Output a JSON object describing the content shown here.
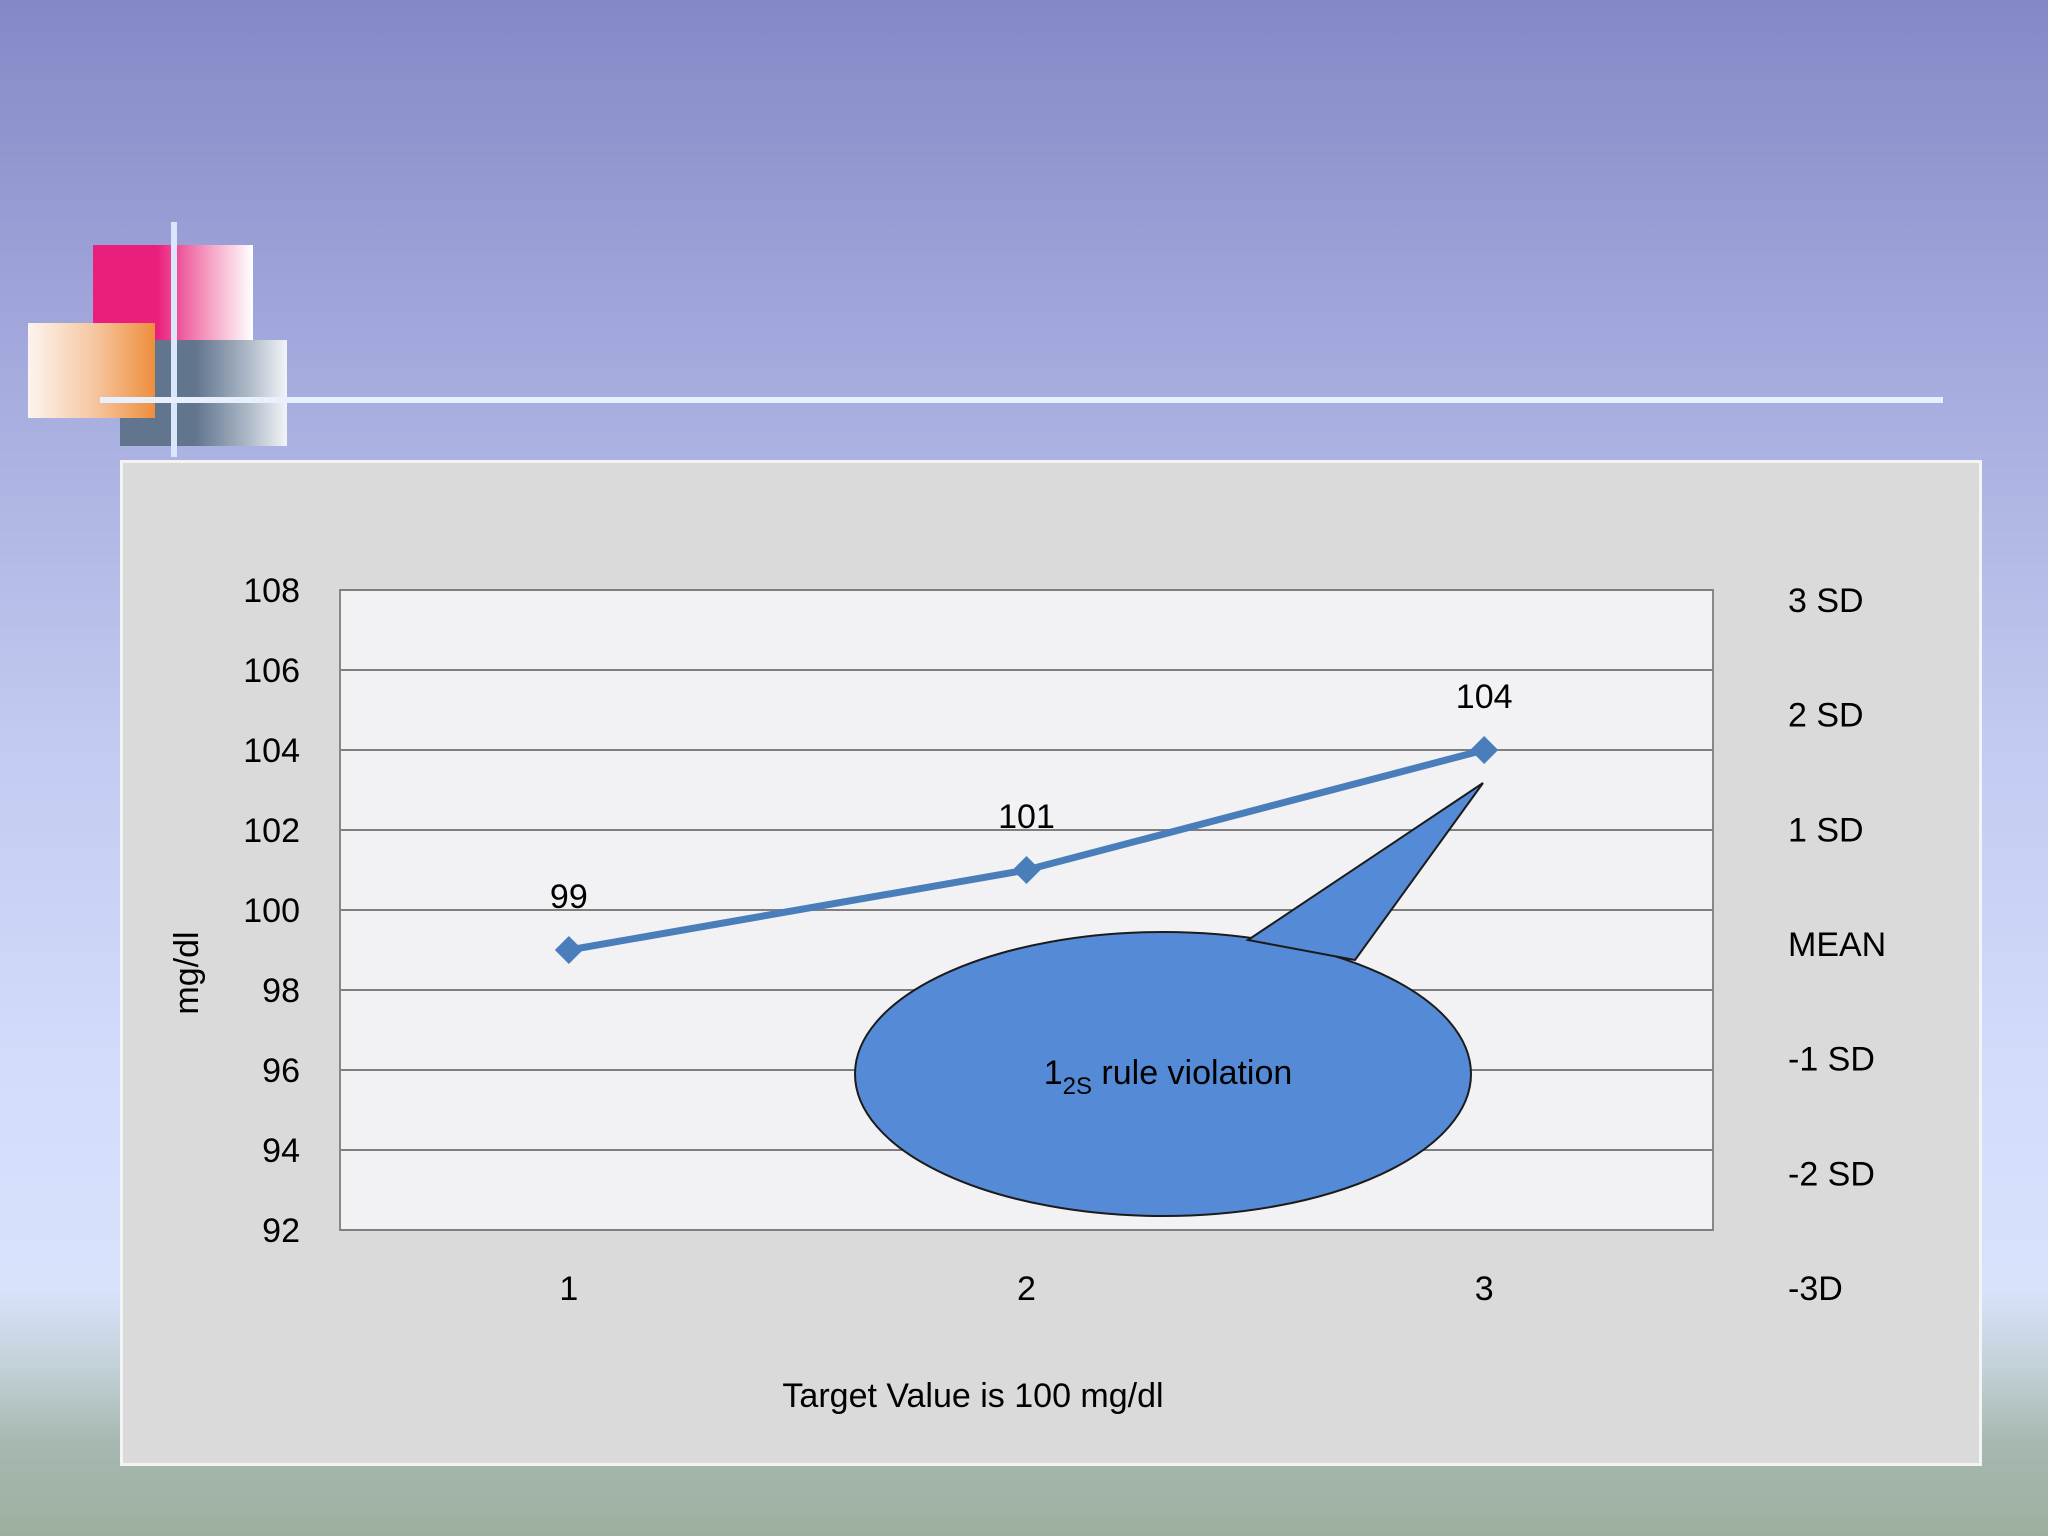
{
  "chart_data": {
    "type": "line",
    "categories": [
      "1",
      "2",
      "3"
    ],
    "series": [
      {
        "values": [
          99,
          101,
          104
        ],
        "color": "#4a7ebb"
      }
    ],
    "data_labels": [
      "99",
      "101",
      "104"
    ],
    "xlabel": "Target Value is 100  mg/dl",
    "ylabel": "mg/dl",
    "ylim": [
      92,
      108
    ],
    "y_ticks": [
      "92",
      "94",
      "96",
      "98",
      "100",
      "102",
      "104",
      "106",
      "108"
    ],
    "grid": true,
    "sd_labels": [
      "3 SD",
      "2 SD",
      "1 SD",
      "MEAN",
      "-1 SD",
      "-2 SD",
      "-3D"
    ],
    "callout": {
      "main": "1",
      "subscript": "2S",
      "rest": " rule violation",
      "fill": "#558ad7"
    },
    "plot_background": "#f2f2f4",
    "frame_background": "#dadada"
  }
}
